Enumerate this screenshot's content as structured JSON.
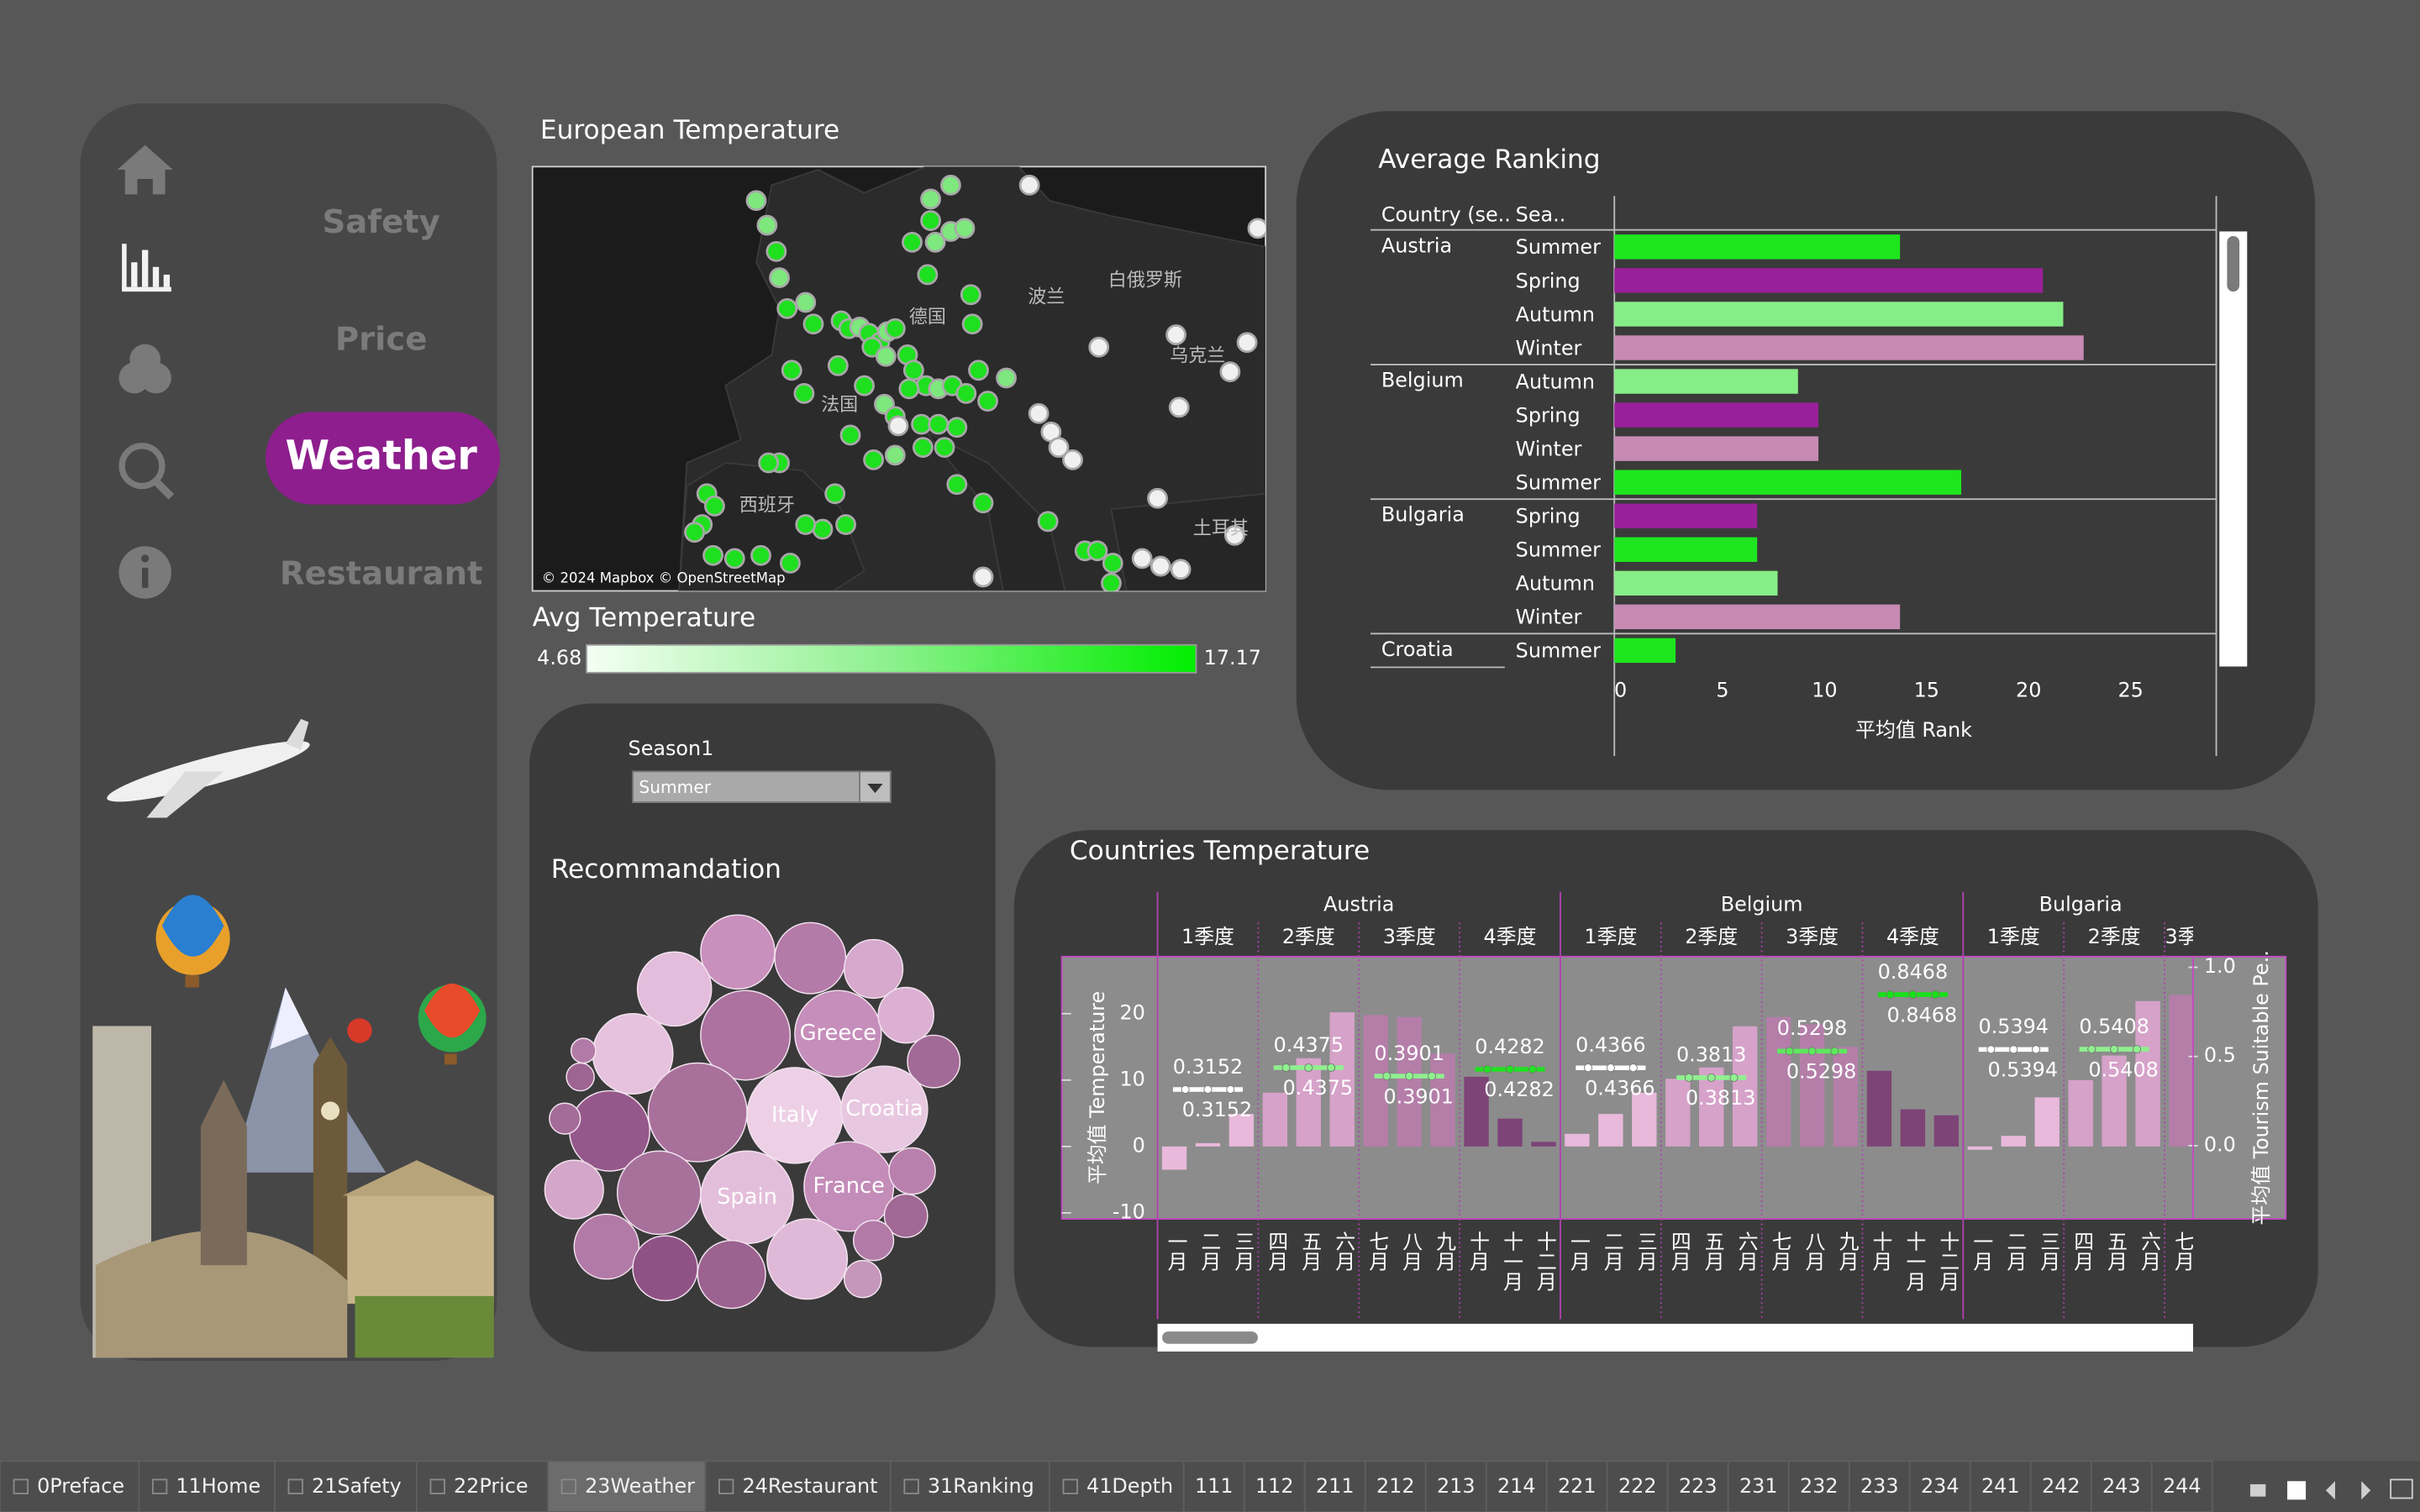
{
  "nav": {
    "items": [
      "Safety",
      "Price",
      "Weather",
      "Restaurant"
    ],
    "active": 2
  },
  "map": {
    "title": "European Temperature",
    "attribution": "© 2024 Mapbox © OpenStreetMap",
    "labels": [
      "德国",
      "波兰",
      "白俄罗斯",
      "乌克兰",
      "法国",
      "西班牙",
      "土耳其"
    ]
  },
  "legend": {
    "title": "Avg Temperature",
    "min": "4.68",
    "max": "17.17"
  },
  "filter": {
    "label": "Season1",
    "value": "Summer"
  },
  "recommendation": {
    "title": "Recommandation",
    "bubbles": [
      {
        "label": null,
        "size": 24,
        "color": "#c98fbd"
      },
      {
        "label": null,
        "size": 23,
        "color": "#b47aa8"
      },
      {
        "label": null,
        "size": 19,
        "color": "#d7a9cd"
      },
      {
        "label": null,
        "size": 24,
        "color": "#e3bddb"
      },
      {
        "label": null,
        "size": 29,
        "color": "#ad729f"
      },
      {
        "label": "Greece",
        "size": 28,
        "color": "#c68ebb"
      },
      {
        "label": null,
        "size": 18,
        "color": "#dcb0d3"
      },
      {
        "label": null,
        "size": 17,
        "color": "#a26a96"
      },
      {
        "label": null,
        "size": 26,
        "color": "#e6c2de"
      },
      {
        "label": null,
        "size": 8,
        "color": "#b27ba7"
      },
      {
        "label": null,
        "size": 9,
        "color": "#9e6592"
      },
      {
        "label": null,
        "size": 32,
        "color": "#a9709c"
      },
      {
        "label": "Italy",
        "size": 31,
        "color": "#edd0e6"
      },
      {
        "label": "Croatia",
        "size": 28,
        "color": "#e8c7e0"
      },
      {
        "label": null,
        "size": 26,
        "color": "#95588a"
      },
      {
        "label": null,
        "size": 10,
        "color": "#a46c98"
      },
      {
        "label": null,
        "size": 27,
        "color": "#a7719c"
      },
      {
        "label": "Spain",
        "size": 30,
        "color": "#e3bedb"
      },
      {
        "label": "France",
        "size": 29,
        "color": "#c48cb9"
      },
      {
        "label": null,
        "size": 15,
        "color": "#b980ad"
      },
      {
        "label": null,
        "size": 14,
        "color": "#a06894"
      },
      {
        "label": null,
        "size": 19,
        "color": "#d4a6ca"
      },
      {
        "label": null,
        "size": 21,
        "color": "#b27aa7"
      },
      {
        "label": null,
        "size": 21,
        "color": "#8f5285"
      },
      {
        "label": null,
        "size": 22,
        "color": "#9c6290"
      },
      {
        "label": null,
        "size": 26,
        "color": "#e0b9d8"
      },
      {
        "label": null,
        "size": 13,
        "color": "#b27ba7"
      },
      {
        "label": null,
        "size": 12,
        "color": "#c597ba"
      }
    ]
  },
  "ranking": {
    "title": "Average Ranking",
    "header_country": "Country (se..",
    "header_season": "Sea..",
    "x_title": "平均值 Rank",
    "xlim": [
      0,
      29.5
    ],
    "xticks": [
      0,
      5,
      10,
      15,
      20,
      25
    ],
    "groups": [
      {
        "country": "Austria",
        "rows": [
          {
            "season": "Summer",
            "value": 14,
            "color": "#1ee61e"
          },
          {
            "season": "Spring",
            "value": 21,
            "color": "#9a1f9a"
          },
          {
            "season": "Autumn",
            "value": 22,
            "color": "#86ee86"
          },
          {
            "season": "Winter",
            "value": 23,
            "color": "#c78ab2"
          }
        ]
      },
      {
        "country": "Belgium",
        "rows": [
          {
            "season": "Autumn",
            "value": 9,
            "color": "#86ee86"
          },
          {
            "season": "Spring",
            "value": 10,
            "color": "#9a1f9a"
          },
          {
            "season": "Winter",
            "value": 10,
            "color": "#c78ab2"
          },
          {
            "season": "Summer",
            "value": 17,
            "color": "#1ee61e"
          }
        ]
      },
      {
        "country": "Bulgaria",
        "rows": [
          {
            "season": "Spring",
            "value": 7,
            "color": "#9a1f9a"
          },
          {
            "season": "Summer",
            "value": 7,
            "color": "#1ee61e"
          },
          {
            "season": "Autumn",
            "value": 8,
            "color": "#86ee86"
          },
          {
            "season": "Winter",
            "value": 14,
            "color": "#c78ab2"
          }
        ]
      },
      {
        "country": "Croatia",
        "rows": [
          {
            "season": "Summer",
            "value": 3,
            "color": "#1ee61e"
          }
        ]
      }
    ]
  },
  "temperature": {
    "title": "Countries Temperature",
    "y_title": "平均值 Temperature",
    "y2_title": "平均值 Tourism Suitable Pe..",
    "ylim": [
      -10.9,
      28.6
    ],
    "yticks": [
      -10,
      0,
      10,
      20
    ],
    "y2lim": [
      -0.41,
      1.06
    ],
    "y2ticks": [
      {
        "value": 1,
        "label": "1.0"
      },
      0.5,
      {
        "value": 0,
        "label": "0.0"
      }
    ],
    "countries": [
      {
        "name": "Austria",
        "quarters": [
          {
            "name": "1季度",
            "color": "#e8b9da",
            "line_color": "#ffffff",
            "suitability": 0.3152,
            "suitability_label": "0.3152",
            "months": [
              {
                "name": "一月",
                "value": -3.5
              },
              {
                "name": "二月",
                "value": 0.5
              },
              {
                "name": "三月",
                "value": 4.9
              }
            ]
          },
          {
            "name": "2季度",
            "color": "#d6a2c9",
            "line_color": "#8ff08f",
            "suitability": 0.4375,
            "suitability_label": "0.4375",
            "months": [
              {
                "name": "四月",
                "value": 8.1
              },
              {
                "name": "五月",
                "value": 13.3
              },
              {
                "name": "六月",
                "value": 20.2
              }
            ]
          },
          {
            "name": "3季度",
            "color": "#b47ea9",
            "line_color": "#8ff08f",
            "suitability": 0.3901,
            "suitability_label": "0.3901",
            "months": [
              {
                "name": "七月",
                "value": 19.8
              },
              {
                "name": "八月",
                "value": 19.5
              },
              {
                "name": "九月",
                "value": 14
              }
            ]
          },
          {
            "name": "4季度",
            "color": "#7d4477",
            "line_color": "#22e022",
            "suitability": 0.4282,
            "suitability_label": "0.4282",
            "months": [
              {
                "name": "十月",
                "value": 10.5
              },
              {
                "name": "十一月",
                "value": 4.2
              },
              {
                "name": "十二月",
                "value": 0.7
              }
            ]
          }
        ]
      },
      {
        "name": "Belgium",
        "quarters": [
          {
            "name": "1季度",
            "color": "#e8b9da",
            "line_color": "#ffffff",
            "suitability": 0.4366,
            "suitability_label": "0.4366",
            "months": [
              {
                "name": "一月",
                "value": 1.9
              },
              {
                "name": "二月",
                "value": 4.9
              },
              {
                "name": "三月",
                "value": 8.1
              }
            ]
          },
          {
            "name": "2季度",
            "color": "#d6a2c9",
            "line_color": "#8ff08f",
            "suitability": 0.3813,
            "suitability_label": "0.3813",
            "months": [
              {
                "name": "四月",
                "value": 10.2
              },
              {
                "name": "五月",
                "value": 11.9
              },
              {
                "name": "六月",
                "value": 18.1
              }
            ]
          },
          {
            "name": "3季度",
            "color": "#b47ea9",
            "line_color": "#5ee85e",
            "suitability": 0.5298,
            "suitability_label": "0.5298",
            "months": [
              {
                "name": "七月",
                "value": 19.5
              },
              {
                "name": "八月",
                "value": 18.4
              },
              {
                "name": "九月",
                "value": 15
              }
            ]
          },
          {
            "name": "4季度",
            "color": "#7d4477",
            "line_color": "#18e018",
            "suitability": 0.8468,
            "suitability_label": "0.8468",
            "months": [
              {
                "name": "十月",
                "value": 11.4
              },
              {
                "name": "十一月",
                "value": 5.6
              },
              {
                "name": "十二月",
                "value": 4.7
              }
            ]
          }
        ]
      },
      {
        "name": "Bulgaria",
        "quarters": [
          {
            "name": "1季度",
            "color": "#e8b9da",
            "line_color": "#ffffff",
            "suitability": 0.5394,
            "suitability_label": "0.5394",
            "months": [
              {
                "name": "一月",
                "value": -0.5
              },
              {
                "name": "二月",
                "value": 1.6
              },
              {
                "name": "三月",
                "value": 7.4
              }
            ]
          },
          {
            "name": "2季度",
            "color": "#d6a2c9",
            "line_color": "#8ff08f",
            "suitability": 0.5408,
            "suitability_label": "0.5408",
            "months": [
              {
                "name": "四月",
                "value": 10
              },
              {
                "name": "五月",
                "value": 13.7
              },
              {
                "name": "六月",
                "value": 21.9
              }
            ]
          },
          {
            "name": "3季",
            "color": "#b47ea9",
            "months": [
              {
                "name": "七月",
                "value": 22.8
              }
            ]
          }
        ]
      }
    ]
  },
  "tabs": {
    "items": [
      "0Preface",
      "11Home",
      "21Safety",
      "22Price",
      "23Weather",
      "24Restaurant",
      "31Ranking",
      "41Depth",
      "111",
      "112",
      "211",
      "212",
      "213",
      "214",
      "221",
      "222",
      "223",
      "231",
      "232",
      "233",
      "234",
      "241",
      "242",
      "243",
      "244"
    ],
    "active": 4
  }
}
